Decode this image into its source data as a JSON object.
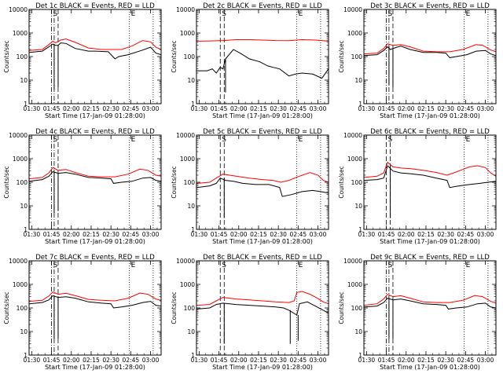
{
  "x_axis_label": "Start Time (17-Jan-09 01:28:00)",
  "y_axis_label": "Counts/sec",
  "x_tick_labels": [
    "01:30",
    "01:45",
    "02:00",
    "02:15",
    "02:30",
    "02:45",
    "03:00"
  ],
  "y_tick_labels": [
    "1",
    "10",
    "100",
    "1000",
    "10000"
  ],
  "marker_S": "S",
  "marker_E": "E",
  "colors": {
    "events": "#000000",
    "lld": "#ff0000",
    "background": "#ffffff"
  },
  "chart_data": [
    {
      "type": "line",
      "title": "Det 1c BLACK = Events, RED = LLD",
      "xlabel": "Start Time (17-Jan-09 01:28:00)",
      "ylabel": "Counts/sec",
      "y_scale": "log",
      "ylim": [
        1,
        10000
      ],
      "xlim_minutes": [
        0,
        100
      ],
      "x_unit": "minutes since 01:28:00",
      "series": [
        {
          "name": "Events",
          "color": "#000000",
          "x": [
            0,
            10,
            15,
            18,
            20,
            22,
            24,
            28,
            35,
            45,
            50,
            60,
            65,
            68,
            75,
            85,
            92,
            96,
            100
          ],
          "y": [
            150,
            170,
            260,
            340,
            300,
            300,
            380,
            360,
            220,
            170,
            170,
            160,
            80,
            100,
            120,
            180,
            250,
            140,
            120
          ]
        },
        {
          "name": "LLD",
          "color": "#ff0000",
          "x": [
            0,
            10,
            15,
            18,
            20,
            24,
            28,
            35,
            45,
            55,
            62,
            70,
            78,
            86,
            92,
            96,
            100
          ],
          "y": [
            180,
            200,
            320,
            450,
            380,
            500,
            560,
            400,
            230,
            200,
            200,
            200,
            280,
            480,
            420,
            250,
            200
          ]
        }
      ],
      "vlines": [
        {
          "x": 17,
          "style": "dash-dot"
        },
        {
          "x": 19,
          "style": "dash-dot"
        },
        {
          "x": 22,
          "style": "dashed"
        },
        {
          "x": 76,
          "style": "dotted"
        },
        {
          "x": 94,
          "style": "dotted"
        }
      ],
      "dips": [
        {
          "x": 19,
          "y": 4
        },
        {
          "x": 22,
          "y": 5
        }
      ]
    },
    {
      "type": "line",
      "title": "Det 2c BLACK = Events, RED = LLD",
      "xlabel": "Start Time (17-Jan-09 01:28:00)",
      "ylabel": "Counts/sec",
      "y_scale": "log",
      "ylim": [
        1,
        10000
      ],
      "xlim_minutes": [
        0,
        100
      ],
      "series": [
        {
          "name": "Events",
          "color": "#000000",
          "x": [
            0,
            8,
            12,
            15,
            18,
            20,
            22,
            28,
            34,
            40,
            48,
            54,
            58,
            63,
            70,
            75,
            80,
            88,
            95,
            100
          ],
          "y": [
            25,
            25,
            30,
            20,
            35,
            30,
            80,
            200,
            130,
            80,
            60,
            40,
            35,
            30,
            15,
            18,
            20,
            18,
            12,
            30
          ]
        },
        {
          "name": "LLD",
          "color": "#ff0000",
          "x": [
            0,
            10,
            20,
            30,
            40,
            50,
            60,
            70,
            80,
            90,
            100
          ],
          "y": [
            450,
            460,
            480,
            520,
            520,
            500,
            480,
            470,
            520,
            500,
            450
          ]
        }
      ],
      "vlines": [
        {
          "x": 18,
          "style": "dashed"
        },
        {
          "x": 21,
          "style": "dashed"
        },
        {
          "x": 76,
          "style": "dotted"
        },
        {
          "x": 94,
          "style": "dotted"
        }
      ],
      "dips": [
        {
          "x": 22,
          "y": 3
        }
      ]
    },
    {
      "type": "line",
      "title": "Det 3c BLACK = Events, RED = LLD",
      "xlabel": "Start Time (17-Jan-09 01:28:00)",
      "ylabel": "Counts/sec",
      "y_scale": "log",
      "ylim": [
        1,
        10000
      ],
      "xlim_minutes": [
        0,
        100
      ],
      "series": [
        {
          "name": "Events",
          "color": "#000000",
          "x": [
            0,
            10,
            15,
            18,
            20,
            24,
            28,
            35,
            45,
            55,
            62,
            65,
            70,
            78,
            85,
            92,
            96,
            100
          ],
          "y": [
            110,
            120,
            180,
            260,
            200,
            240,
            280,
            200,
            150,
            150,
            140,
            90,
            100,
            120,
            170,
            180,
            130,
            110
          ]
        },
        {
          "name": "LLD",
          "color": "#ff0000",
          "x": [
            0,
            10,
            15,
            18,
            22,
            28,
            35,
            45,
            55,
            65,
            75,
            85,
            90,
            96,
            100
          ],
          "y": [
            130,
            140,
            220,
            350,
            300,
            320,
            260,
            170,
            160,
            160,
            200,
            320,
            300,
            190,
            160
          ]
        }
      ],
      "vlines": [
        {
          "x": 17,
          "style": "dash-dot"
        },
        {
          "x": 19,
          "style": "dash-dot"
        },
        {
          "x": 22,
          "style": "dashed"
        },
        {
          "x": 76,
          "style": "dotted"
        },
        {
          "x": 94,
          "style": "dotted"
        }
      ],
      "dips": [
        {
          "x": 19,
          "y": 6
        },
        {
          "x": 22,
          "y": 5
        }
      ]
    },
    {
      "type": "line",
      "title": "Det 4c BLACK = Events, RED = LLD",
      "xlabel": "Start Time (17-Jan-09 01:28:00)",
      "ylabel": "Counts/sec",
      "y_scale": "log",
      "ylim": [
        1,
        10000
      ],
      "xlim_minutes": [
        0,
        100
      ],
      "series": [
        {
          "name": "Events",
          "color": "#000000",
          "x": [
            0,
            10,
            15,
            18,
            22,
            28,
            35,
            45,
            55,
            62,
            64,
            70,
            78,
            86,
            92,
            96,
            100
          ],
          "y": [
            110,
            130,
            180,
            280,
            240,
            260,
            220,
            160,
            150,
            140,
            90,
            100,
            110,
            150,
            160,
            120,
            110
          ]
        },
        {
          "name": "LLD",
          "color": "#ff0000",
          "x": [
            0,
            10,
            15,
            18,
            22,
            28,
            35,
            45,
            55,
            65,
            75,
            84,
            90,
            96,
            100
          ],
          "y": [
            140,
            160,
            250,
            420,
            320,
            350,
            260,
            180,
            170,
            170,
            220,
            360,
            320,
            200,
            180
          ]
        }
      ],
      "vlines": [
        {
          "x": 17,
          "style": "dash-dot"
        },
        {
          "x": 19,
          "style": "dash-dot"
        },
        {
          "x": 22,
          "style": "dashed"
        },
        {
          "x": 76,
          "style": "dotted"
        },
        {
          "x": 94,
          "style": "dotted"
        }
      ],
      "dips": [
        {
          "x": 19,
          "y": 5
        },
        {
          "x": 22,
          "y": 6
        }
      ]
    },
    {
      "type": "line",
      "title": "Det 5c BLACK = Events, RED = LLD",
      "xlabel": "Start Time (17-Jan-09 01:28:00)",
      "ylabel": "Counts/sec",
      "y_scale": "log",
      "ylim": [
        1,
        10000
      ],
      "xlim_minutes": [
        0,
        100
      ],
      "series": [
        {
          "name": "Events",
          "color": "#000000",
          "x": [
            0,
            10,
            15,
            18,
            22,
            28,
            35,
            45,
            55,
            63,
            65,
            72,
            80,
            88,
            94,
            100
          ],
          "y": [
            60,
            70,
            90,
            150,
            120,
            110,
            90,
            80,
            80,
            60,
            25,
            30,
            40,
            45,
            40,
            35
          ]
        },
        {
          "name": "LLD",
          "color": "#ff0000",
          "x": [
            0,
            10,
            15,
            20,
            25,
            30,
            40,
            50,
            58,
            64,
            70,
            78,
            86,
            92,
            96,
            100
          ],
          "y": [
            90,
            100,
            150,
            220,
            200,
            180,
            150,
            130,
            120,
            100,
            120,
            180,
            260,
            200,
            120,
            100
          ]
        }
      ],
      "vlines": [
        {
          "x": 18,
          "style": "dashed"
        },
        {
          "x": 21,
          "style": "dashed"
        },
        {
          "x": 76,
          "style": "dotted"
        },
        {
          "x": 94,
          "style": "dotted"
        }
      ],
      "dips": [
        {
          "x": 21,
          "y": 3
        }
      ]
    },
    {
      "type": "line",
      "title": "Det 6c BLACK = Events, RED = LLD",
      "xlabel": "Start Time (17-Jan-09 01:28:00)",
      "ylabel": "Counts/sec",
      "y_scale": "log",
      "ylim": [
        1,
        10000
      ],
      "xlim_minutes": [
        0,
        100
      ],
      "series": [
        {
          "name": "Events",
          "color": "#000000",
          "x": [
            0,
            10,
            15,
            18,
            22,
            28,
            35,
            45,
            55,
            63,
            65,
            72,
            80,
            88,
            94,
            100
          ],
          "y": [
            120,
            130,
            150,
            500,
            300,
            250,
            230,
            200,
            150,
            120,
            60,
            70,
            80,
            90,
            100,
            110
          ]
        },
        {
          "name": "LLD",
          "color": "#ff0000",
          "x": [
            0,
            10,
            15,
            18,
            22,
            28,
            35,
            45,
            55,
            63,
            68,
            75,
            80,
            86,
            92,
            96,
            100
          ],
          "y": [
            160,
            180,
            250,
            700,
            450,
            400,
            380,
            320,
            260,
            200,
            250,
            350,
            450,
            500,
            420,
            250,
            180
          ]
        }
      ],
      "vlines": [
        {
          "x": 17,
          "style": "dashed"
        },
        {
          "x": 20,
          "style": "dashed"
        },
        {
          "x": 76,
          "style": "dotted"
        },
        {
          "x": 94,
          "style": "dotted"
        }
      ],
      "dips": [
        {
          "x": 20,
          "y": 3
        }
      ]
    },
    {
      "type": "line",
      "title": "Det 7c BLACK = Events, RED = LLD",
      "xlabel": "Start Time (17-Jan-09 01:28:00)",
      "ylabel": "Counts/sec",
      "y_scale": "log",
      "ylim": [
        1,
        10000
      ],
      "xlim_minutes": [
        0,
        100
      ],
      "series": [
        {
          "name": "Events",
          "color": "#000000",
          "x": [
            0,
            10,
            15,
            18,
            22,
            28,
            35,
            45,
            55,
            62,
            64,
            70,
            78,
            86,
            92,
            96,
            100
          ],
          "y": [
            150,
            170,
            220,
            330,
            280,
            300,
            260,
            180,
            160,
            150,
            100,
            110,
            130,
            170,
            190,
            130,
            120
          ]
        },
        {
          "name": "LLD",
          "color": "#ff0000",
          "x": [
            0,
            10,
            15,
            18,
            22,
            28,
            35,
            45,
            55,
            65,
            75,
            84,
            90,
            96,
            100
          ],
          "y": [
            190,
            210,
            320,
            480,
            380,
            420,
            330,
            230,
            210,
            200,
            260,
            430,
            380,
            240,
            210
          ]
        }
      ],
      "vlines": [
        {
          "x": 17,
          "style": "dash-dot"
        },
        {
          "x": 19,
          "style": "dash-dot"
        },
        {
          "x": 22,
          "style": "dashed"
        },
        {
          "x": 76,
          "style": "dotted"
        },
        {
          "x": 94,
          "style": "dotted"
        }
      ],
      "dips": [
        {
          "x": 19,
          "y": 5
        },
        {
          "x": 22,
          "y": 5
        }
      ]
    },
    {
      "type": "line",
      "title": "Det 8c BLACK = Events, RED = LLD",
      "xlabel": "Start Time (17-Jan-09 01:28:00)",
      "ylabel": "Counts/sec",
      "y_scale": "log",
      "ylim": [
        1,
        10000
      ],
      "xlim_minutes": [
        0,
        100
      ],
      "series": [
        {
          "name": "Events",
          "color": "#000000",
          "x": [
            0,
            10,
            15,
            20,
            25,
            30,
            40,
            50,
            60,
            66,
            70,
            76,
            78,
            84,
            90,
            96,
            100
          ],
          "y": [
            90,
            100,
            140,
            160,
            150,
            140,
            130,
            120,
            110,
            100,
            80,
            50,
            150,
            180,
            120,
            80,
            60
          ]
        },
        {
          "name": "LLD",
          "color": "#ff0000",
          "x": [
            0,
            10,
            15,
            20,
            25,
            30,
            40,
            50,
            60,
            70,
            74,
            76,
            80,
            86,
            92,
            96,
            100
          ],
          "y": [
            130,
            140,
            200,
            280,
            260,
            240,
            220,
            200,
            180,
            170,
            200,
            450,
            500,
            380,
            250,
            180,
            150
          ]
        }
      ],
      "vlines": [
        {
          "x": 18,
          "style": "dashed"
        },
        {
          "x": 21,
          "style": "dashed"
        },
        {
          "x": 76,
          "style": "dotted"
        },
        {
          "x": 94,
          "style": "dotted"
        }
      ],
      "dips": [
        {
          "x": 21,
          "y": 3
        },
        {
          "x": 71,
          "y": 3
        },
        {
          "x": 77,
          "y": 4
        }
      ]
    },
    {
      "type": "line",
      "title": "Det 9c BLACK = Events, RED = LLD",
      "xlabel": "Start Time (17-Jan-09 01:28:00)",
      "ylabel": "Counts/sec",
      "y_scale": "log",
      "ylim": [
        1,
        10000
      ],
      "xlim_minutes": [
        0,
        100
      ],
      "series": [
        {
          "name": "Events",
          "color": "#000000",
          "x": [
            0,
            10,
            15,
            18,
            22,
            28,
            35,
            45,
            55,
            62,
            64,
            70,
            78,
            86,
            92,
            96,
            100
          ],
          "y": [
            110,
            120,
            170,
            260,
            220,
            240,
            200,
            150,
            140,
            130,
            90,
            100,
            110,
            150,
            160,
            110,
            100
          ]
        },
        {
          "name": "LLD",
          "color": "#ff0000",
          "x": [
            0,
            10,
            15,
            18,
            22,
            28,
            35,
            45,
            55,
            65,
            75,
            84,
            90,
            96,
            100
          ],
          "y": [
            130,
            150,
            240,
            380,
            300,
            330,
            260,
            180,
            170,
            170,
            210,
            340,
            300,
            190,
            160
          ]
        }
      ],
      "vlines": [
        {
          "x": 17,
          "style": "dash-dot"
        },
        {
          "x": 19,
          "style": "dash-dot"
        },
        {
          "x": 22,
          "style": "dashed"
        },
        {
          "x": 76,
          "style": "dotted"
        },
        {
          "x": 94,
          "style": "dotted"
        }
      ],
      "dips": [
        {
          "x": 19,
          "y": 5
        },
        {
          "x": 22,
          "y": 5
        }
      ]
    }
  ]
}
